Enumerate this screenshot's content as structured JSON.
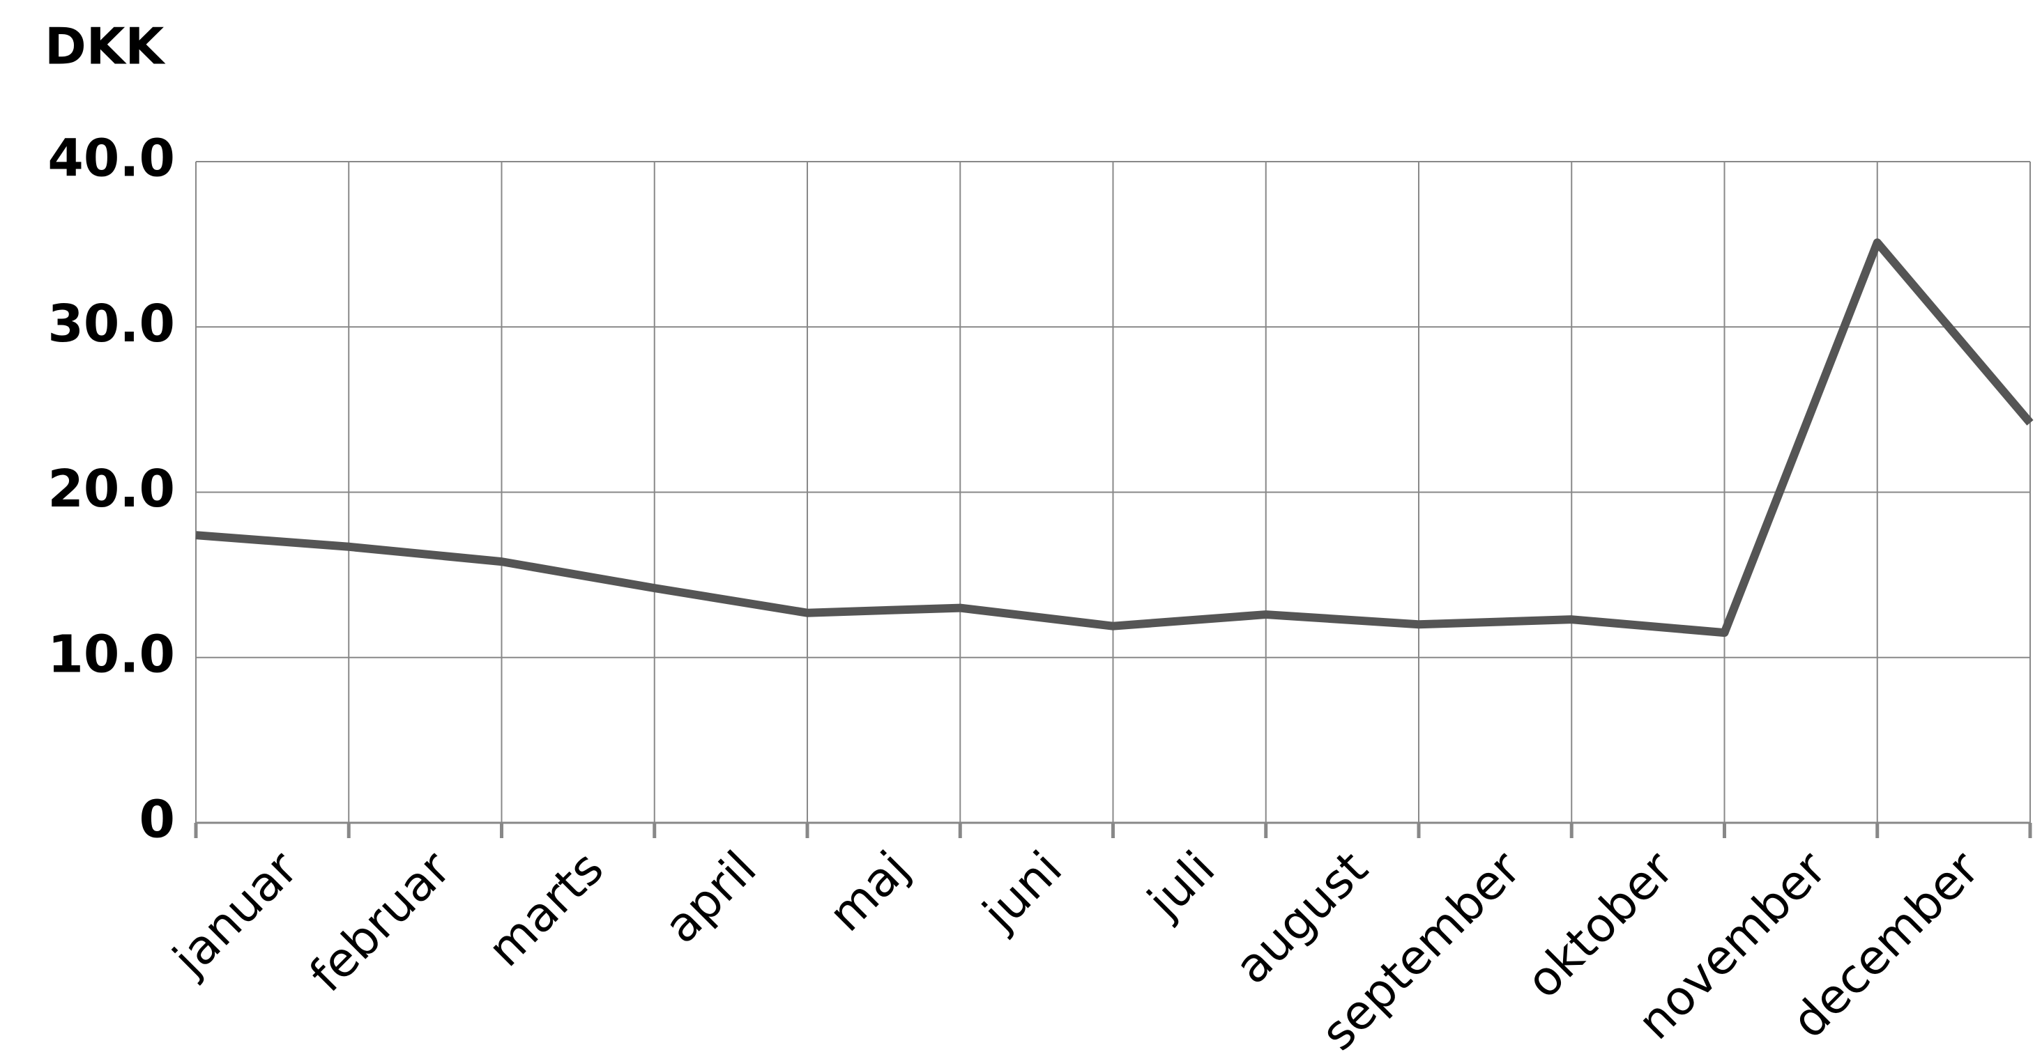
{
  "chart_data": {
    "type": "line",
    "y_label": "DKK",
    "categories": [
      "januar",
      "februar",
      "marts",
      "april",
      "maj",
      "juni",
      "juli",
      "august",
      "september",
      "oktober",
      "november",
      "december",
      null
    ],
    "values": [
      17.4,
      16.7,
      15.8,
      14.2,
      12.7,
      13.0,
      11.9,
      12.6,
      12.0,
      12.3,
      11.5,
      35.1,
      24.2
    ],
    "color": "#555555",
    "ylim": [
      0,
      40
    ],
    "yticks": [
      {
        "value": 0,
        "label": "0"
      },
      {
        "value": 10,
        "label": "10.0"
      },
      {
        "value": 20,
        "label": "20.0"
      },
      {
        "value": 30,
        "label": "30.0"
      },
      {
        "value": 40,
        "label": "40.0"
      }
    ],
    "grid": true
  }
}
